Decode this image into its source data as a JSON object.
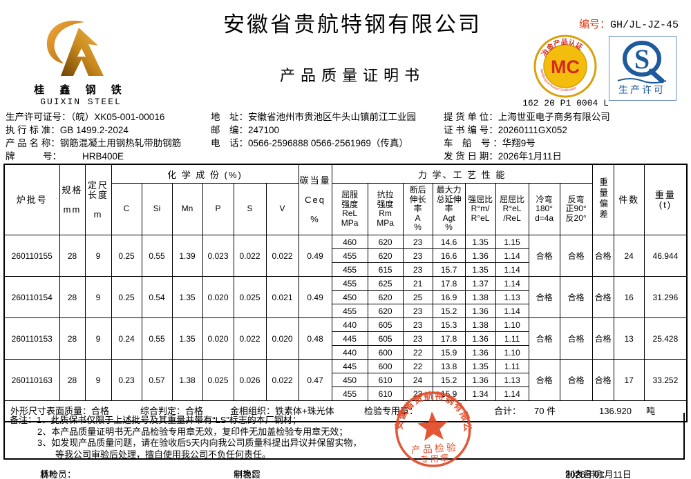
{
  "header": {
    "company": "安徽省贵航特钢有限公司",
    "doc_title": "产品质量证明书",
    "serial_label": "编号：",
    "serial_value": "GH/JL-JZ-45",
    "logo_cn": "桂 鑫 钢 铁",
    "logo_en": "GUIXIN STEEL",
    "mc_badge": {
      "letters": "MC",
      "ring_top": "冶金产品认证",
      "ring_bottom": "Metallurgical Product Certification",
      "code": "162 20 P1 0004 L"
    },
    "qs_badge": {
      "letter": "S",
      "caption": "生产许可"
    },
    "colors": {
      "accent_red": "#e3340f",
      "badge_gold": "#d8a00a",
      "badge_blue": "#1d5a9e",
      "stamp_red": "#e0401c"
    }
  },
  "info": {
    "c1": [
      {
        "label": "生产许可证号：",
        "value": "（皖）XK05-001-00016"
      },
      {
        "label": "执 行 标 准：",
        "value": "GB 1499.2-2024"
      },
      {
        "label": "产 品 名 称：",
        "value": "钢筋混凝土用钢热轧带肋钢筋"
      },
      {
        "label": "牌　　　号：",
        "value": "HRB400E"
      }
    ],
    "c2": [
      {
        "label": "地　址：",
        "value": "安徽省池州市贵池区牛头山镇前江工业园"
      },
      {
        "label": "邮　编：",
        "value": "247100"
      },
      {
        "label": "电　话：",
        "value": "0566-2596888  0566-2561969（传真）"
      }
    ],
    "c3": [
      {
        "label": "提 货 单 位：",
        "value": "上海世亚电子商务有限公司"
      },
      {
        "label": "证 书 编 号：",
        "value": "20260111GX052"
      },
      {
        "label": "车　船　号 ：",
        "value": "华翔9号"
      },
      {
        "label": "发 货 日 期：",
        "value": "2026年1月11日"
      }
    ]
  },
  "table": {
    "headers": {
      "heat_no": "炉批号",
      "spec": "规格\n\nmm",
      "length": "定尺\n长度\n\nm",
      "chem_group": "化 学 成 份 (%)",
      "chem_cols": [
        "C",
        "Si",
        "Mn",
        "P",
        "S",
        "V"
      ],
      "ceq": "碳当量\n\nCeq\n\n%",
      "mech_group": "力 学、工 艺 性 能",
      "rel": "屈服\n强度\nReL\nMPa",
      "rm": "抗拉\n强度\nRm\nMPa",
      "a": "断后\n伸长\n率\nA\n%",
      "agt": "最大力\n总延伸\n率\nAgt\n%",
      "qiangqu": "强屈比\nR°m/\nR°eL",
      "ququ": "屈屈比\nR°eL\n/ReL",
      "cold_bend": "冷弯\n180°\nd=4a",
      "reverse_bend": "反弯\n正90°\n反20°",
      "weight_deviation": "重量偏差",
      "pieces": "件数",
      "weight": "重量\n(t)"
    },
    "batches": [
      {
        "heat_no": "260110155",
        "spec": "28",
        "length": "9",
        "chem": {
          "C": "0.25",
          "Si": "0.55",
          "Mn": "1.39",
          "P": "0.023",
          "S": "0.022",
          "V": "0.022",
          "Ceq": "0.49"
        },
        "mech": [
          [
            "460",
            "620",
            "23",
            "14.6",
            "1.35",
            "1.15"
          ],
          [
            "455",
            "620",
            "23",
            "16.6",
            "1.36",
            "1.14"
          ],
          [
            "455",
            "615",
            "23",
            "15.7",
            "1.35",
            "1.14"
          ]
        ],
        "cold_bend": "合格",
        "reverse_bend": "合格",
        "weight_deviation": "合格",
        "pieces": "24",
        "weight_t": "46.944"
      },
      {
        "heat_no": "260110154",
        "spec": "28",
        "length": "9",
        "chem": {
          "C": "0.25",
          "Si": "0.54",
          "Mn": "1.35",
          "P": "0.020",
          "S": "0.025",
          "V": "0.021",
          "Ceq": "0.49"
        },
        "mech": [
          [
            "455",
            "625",
            "21",
            "17.8",
            "1.37",
            "1.14"
          ],
          [
            "450",
            "620",
            "25",
            "16.9",
            "1.38",
            "1.13"
          ],
          [
            "455",
            "620",
            "23",
            "15.2",
            "1.36",
            "1.14"
          ]
        ],
        "cold_bend": "合格",
        "reverse_bend": "合格",
        "weight_deviation": "合格",
        "pieces": "16",
        "weight_t": "31.296"
      },
      {
        "heat_no": "260110153",
        "spec": "28",
        "length": "9",
        "chem": {
          "C": "0.24",
          "Si": "0.55",
          "Mn": "1.35",
          "P": "0.020",
          "S": "0.022",
          "V": "0.020",
          "Ceq": "0.48"
        },
        "mech": [
          [
            "440",
            "605",
            "23",
            "15.3",
            "1.38",
            "1.10"
          ],
          [
            "445",
            "605",
            "23",
            "17.8",
            "1.36",
            "1.11"
          ],
          [
            "440",
            "600",
            "22",
            "15.9",
            "1.36",
            "1.10"
          ]
        ],
        "cold_bend": "合格",
        "reverse_bend": "合格",
        "weight_deviation": "合格",
        "pieces": "13",
        "weight_t": "25.428"
      },
      {
        "heat_no": "260110163",
        "spec": "28",
        "length": "9",
        "chem": {
          "C": "0.23",
          "Si": "0.57",
          "Mn": "1.38",
          "P": "0.025",
          "S": "0.026",
          "V": "0.022",
          "Ceq": "0.47"
        },
        "mech": [
          [
            "445",
            "600",
            "22",
            "13.8",
            "1.35",
            "1.11"
          ],
          [
            "450",
            "610",
            "24",
            "15.2",
            "1.36",
            "1.13"
          ],
          [
            "455",
            "610",
            "23",
            "15.9",
            "1.34",
            "1.14"
          ]
        ],
        "cold_bend": "合格",
        "reverse_bend": "合格",
        "weight_deviation": "合格",
        "pieces": "17",
        "weight_t": "33.252"
      }
    ]
  },
  "summary": {
    "surface_label": "外形尺寸表面质量：",
    "surface_value": "合格",
    "judge_label": "综合判定：",
    "judge_value": "合格",
    "metallo_label": "金相组织：",
    "metallo_value": "铁素体+珠光体",
    "stamp_label": "检验专用章：",
    "total_label": "合计：",
    "total_pieces": "70 件",
    "total_weight": "136.920",
    "total_unit": "吨"
  },
  "stamp": {
    "company": "安徽省贵航特钢有限公司",
    "line1": "产品检验",
    "line2": "专用章"
  },
  "notes": {
    "label": "备注：",
    "items": [
      "1、此质保书仅限于上述批号及其重量并带有“LS”标志的本厂钢材；",
      "2、本产品质量证明书无产品检验专用章无效，复印件无加盖检验专用章无效；",
      "3、如发现产品质量问题，请在验收后5天内向我公司质量科提出异议并保留实物，",
      "等我公司审验后处理，擅自使用我公司不负任何责任。"
    ]
  },
  "footer": {
    "inspector_label": "质检员：",
    "inspector": "林叶",
    "tabulator_label": "制表：",
    "tabulator": "申艳霞",
    "date_label": "制表日期：",
    "date": "2026年01月11日"
  }
}
